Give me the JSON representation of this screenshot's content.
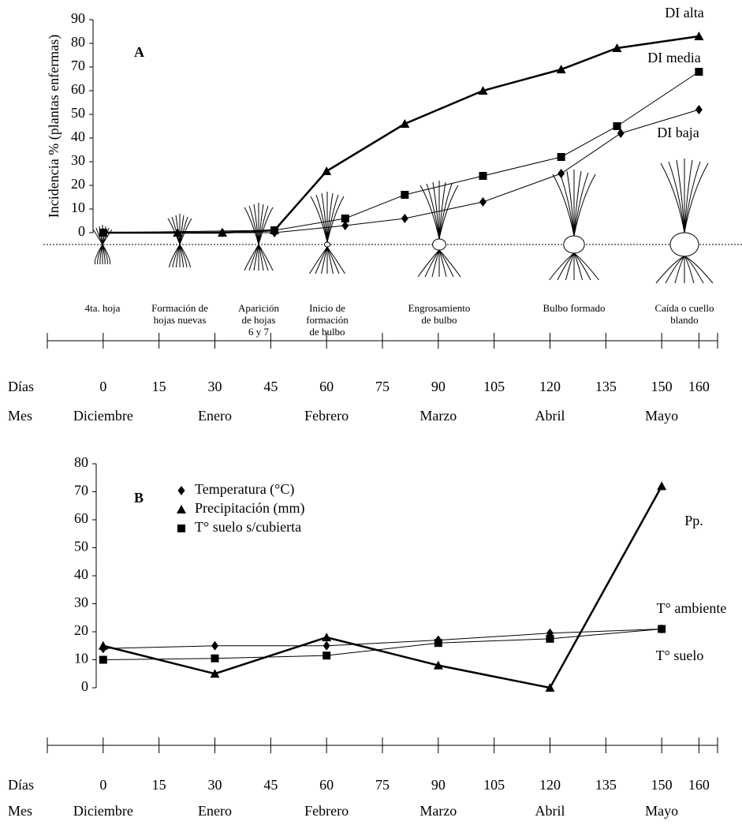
{
  "chart_data": [
    {
      "type": "line",
      "panel": "A",
      "y_label": "Incidencia % (plantas enfermas)",
      "ylim": [
        0,
        90
      ],
      "yticks": [
        0,
        10,
        20,
        30,
        40,
        50,
        60,
        70,
        80,
        90
      ],
      "xlim": [
        -15,
        165
      ],
      "xticks": [
        0,
        15,
        30,
        45,
        60,
        75,
        90,
        105,
        120,
        135,
        150,
        160
      ],
      "x_row_label": "Días",
      "month_row_label": "Mes",
      "months": [
        "Diciembre",
        "Enero",
        "Febrero",
        "Marzo",
        "Abril",
        "Mayo"
      ],
      "stages": [
        [
          "4ta. hoja"
        ],
        [
          "Formación de",
          "hojas nuevas"
        ],
        [
          "Aparición",
          "de hojas",
          "6 y 7"
        ],
        [
          "Inicio de",
          "formación",
          "de bulbo"
        ],
        [
          "Engrosamiento",
          "de bulbo"
        ],
        [
          "Bulbo formado"
        ],
        [
          "Caída o cuello",
          "blando"
        ]
      ],
      "series": [
        {
          "name": "DI alta",
          "color": "#000",
          "marker": "triangle",
          "width": 2.5,
          "x": [
            0,
            20,
            32,
            46,
            60,
            81,
            102,
            123,
            138,
            160
          ],
          "values": [
            0,
            0,
            0,
            1,
            26,
            46,
            60,
            69,
            78,
            83
          ]
        },
        {
          "name": "DI media",
          "color": "#000",
          "marker": "square",
          "width": 1,
          "x": [
            0,
            46,
            65,
            81,
            102,
            123,
            138,
            160
          ],
          "values": [
            0,
            1,
            6,
            16,
            24,
            32,
            45,
            68
          ]
        },
        {
          "name": "DI baja",
          "color": "#000",
          "marker": "diamond",
          "width": 1,
          "x": [
            32,
            46,
            65,
            81,
            102,
            123,
            139,
            160
          ],
          "values": [
            0,
            0,
            3,
            6,
            13,
            25,
            42,
            52
          ]
        }
      ]
    },
    {
      "type": "line",
      "panel": "B",
      "ylim": [
        0,
        80
      ],
      "yticks": [
        0,
        10,
        20,
        30,
        40,
        50,
        60,
        70,
        80
      ],
      "xlim": [
        -15,
        165
      ],
      "xticks": [
        0,
        15,
        30,
        45,
        60,
        75,
        90,
        105,
        120,
        135,
        150,
        160
      ],
      "x_row_label": "Días",
      "month_row_label": "Mes",
      "months": [
        "Diciembre",
        "Enero",
        "Febrero",
        "Marzo",
        "Abril",
        "Mayo"
      ],
      "annotations": [
        "Pp.",
        "T° ambiente",
        "T° suelo"
      ],
      "series": [
        {
          "name": "Temperatura (°C)",
          "color": "#000",
          "marker": "diamond",
          "width": 1,
          "x": [
            0,
            30,
            60,
            90,
            120,
            150
          ],
          "values": [
            14,
            15,
            15,
            17,
            19.5,
            21
          ]
        },
        {
          "name": "Precipitación (mm)",
          "color": "#000",
          "marker": "triangle",
          "width": 2.5,
          "x": [
            0,
            30,
            60,
            90,
            120,
            150
          ],
          "values": [
            15,
            5,
            18,
            8,
            0,
            72
          ]
        },
        {
          "name": "T° suelo s/cubierta",
          "color": "#000",
          "marker": "square",
          "width": 1,
          "x": [
            0,
            30,
            60,
            90,
            120,
            150
          ],
          "values": [
            10,
            10.5,
            11.5,
            16,
            17.5,
            21
          ]
        }
      ]
    }
  ]
}
